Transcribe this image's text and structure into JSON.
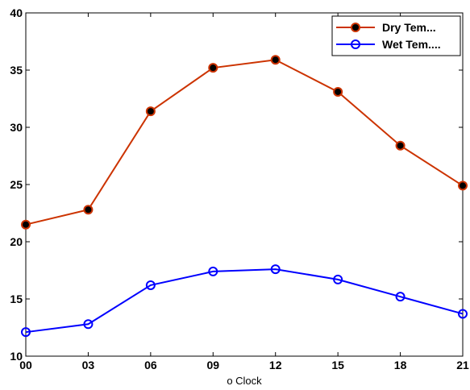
{
  "chart_data": {
    "type": "line",
    "categories": [
      "00",
      "03",
      "06",
      "09",
      "12",
      "15",
      "18",
      "21"
    ],
    "series": [
      {
        "name": "Dry Tem...",
        "color": "#cc3300",
        "marker": "filled-circle",
        "marker_fill": "#000000",
        "values": [
          21.5,
          22.8,
          31.4,
          35.2,
          35.9,
          33.1,
          28.4,
          24.9
        ]
      },
      {
        "name": "Wet Tem....",
        "color": "#0000ff",
        "marker": "open-circle",
        "values": [
          12.1,
          12.8,
          16.2,
          17.4,
          17.6,
          16.7,
          15.2,
          13.7
        ]
      }
    ],
    "xlabel": "o Clock",
    "ylabel": "",
    "ylim": [
      10,
      40
    ],
    "yticks": [
      10,
      15,
      20,
      25,
      30,
      35,
      40
    ],
    "grid": false,
    "legend_position": "top-right"
  }
}
